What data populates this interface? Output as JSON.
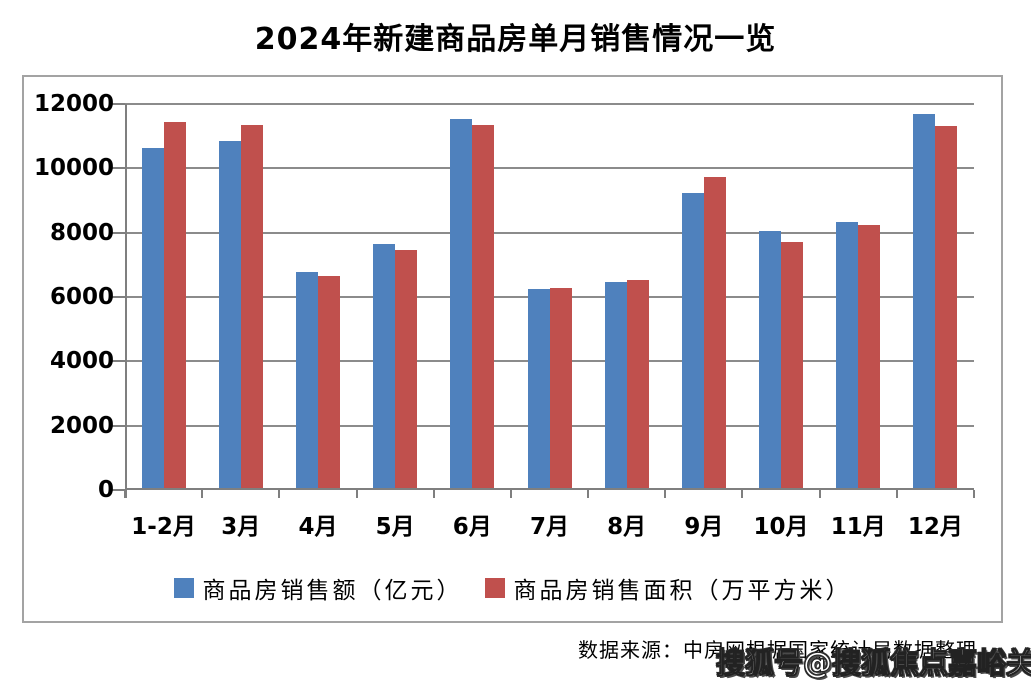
{
  "title": "2024年新建商品房单月销售情况一览",
  "source_text": "数据来源：中房网根据国家统计局数据整理",
  "watermark_text": "搜狐号@搜狐焦点嘉峪关站",
  "colors": {
    "series_blue": "#4F81BD",
    "series_red": "#C0504D",
    "gridline": "#8B8B8B",
    "axis": "#7F7F7F",
    "chart_border": "#A3A3A3"
  },
  "chart_data": {
    "type": "bar",
    "title": "2024年新建商品房单月销售情况一览",
    "categories": [
      "1-2月",
      "3月",
      "4月",
      "5月",
      "6月",
      "7月",
      "8月",
      "9月",
      "10月",
      "11月",
      "12月"
    ],
    "series": [
      {
        "key": "sales-amount",
        "name": "商品房销售额（亿元）",
        "color": "#4F81BD",
        "values": [
          10566,
          10789,
          6712,
          7598,
          11468,
          6197,
          6393,
          9157,
          7975,
          8270,
          11625
        ]
      },
      {
        "key": "sales-area",
        "name": "商品房销售面积（万平方米）",
        "color": "#C0504D",
        "values": [
          11369,
          11299,
          6584,
          7390,
          11274,
          6233,
          6453,
          9682,
          7646,
          8188,
          11267
        ]
      }
    ],
    "xlabel": "",
    "ylabel": "",
    "ylim": [
      0,
      12000
    ],
    "yticks": [
      0,
      2000,
      4000,
      6000,
      8000,
      10000,
      12000
    ],
    "grid": true,
    "legend_position": "bottom"
  }
}
